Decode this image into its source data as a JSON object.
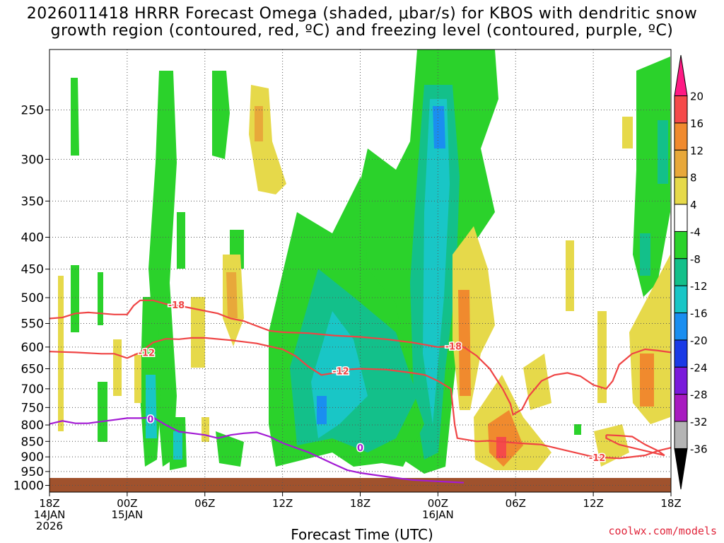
{
  "title": {
    "line1": "2026011418 HRRR Forecast Omega (shaded, μbar/s) for KBOS with dendritic snow",
    "line2": "growth region (contoured, red, ºC) and freezing level (contoured, purple, ºC)"
  },
  "credit": "coolwx.com/models",
  "chart_data": {
    "type": "heatmap",
    "xlabel": "Forecast Time (UTC)",
    "ylabel": "",
    "x_ticks": [
      {
        "hour": 0,
        "lines": [
          "18Z",
          "14JAN",
          "2026"
        ]
      },
      {
        "hour": 6,
        "lines": [
          "00Z",
          "15JAN"
        ]
      },
      {
        "hour": 12,
        "lines": [
          "06Z"
        ]
      },
      {
        "hour": 18,
        "lines": [
          "12Z"
        ]
      },
      {
        "hour": 24,
        "lines": [
          "18Z"
        ]
      },
      {
        "hour": 30,
        "lines": [
          "00Z",
          "16JAN"
        ]
      },
      {
        "hour": 36,
        "lines": [
          "06Z"
        ]
      },
      {
        "hour": 42,
        "lines": [
          "12Z"
        ]
      },
      {
        "hour": 48,
        "lines": [
          "18Z"
        ]
      }
    ],
    "xlim_hours": [
      0,
      48
    ],
    "y_ticks_hPa": [
      250,
      300,
      350,
      400,
      450,
      500,
      550,
      600,
      650,
      700,
      750,
      800,
      850,
      900,
      950,
      1000
    ],
    "ylim_hPa": [
      200,
      1025
    ],
    "y_scale": "log-pressure",
    "grid": true,
    "colorbar": {
      "labels": [
        20,
        16,
        12,
        8,
        4,
        -4,
        -8,
        -12,
        -16,
        -20,
        -24,
        -28,
        -32,
        -36
      ],
      "colors": [
        "#ff1a84",
        "#f54a4a",
        "#f08a2e",
        "#e8a83a",
        "#e6d94a",
        "#ffffff",
        "#2bd22b",
        "#13c08a",
        "#19c6c6",
        "#1a8ef0",
        "#1a3ae6",
        "#7a1adb",
        "#a81ac0",
        "#b4b4b4",
        "#000000"
      ]
    },
    "contour_labels": [
      "-18",
      "-12",
      "-18",
      "-12",
      "-12",
      "0",
      "0"
    ],
    "series": [
      {
        "kind": "temperature-contour",
        "color": "#ef4444",
        "points": [
          [
            0,
            540
          ],
          [
            1,
            538
          ],
          [
            2,
            530
          ],
          [
            3,
            528
          ],
          [
            4,
            530
          ],
          [
            5,
            532
          ],
          [
            6,
            532
          ],
          [
            6.5,
            515
          ],
          [
            7,
            505
          ],
          [
            8,
            505
          ],
          [
            9,
            512
          ],
          [
            10,
            515
          ],
          [
            11,
            520
          ],
          [
            12,
            525
          ],
          [
            13,
            530
          ],
          [
            14,
            540
          ],
          [
            15,
            545
          ],
          [
            16,
            555
          ],
          [
            17,
            565
          ],
          [
            18,
            568
          ],
          [
            20,
            570
          ],
          [
            22,
            575
          ],
          [
            24,
            578
          ],
          [
            26,
            583
          ],
          [
            28,
            590
          ],
          [
            29,
            595
          ],
          [
            30,
            600
          ],
          [
            31,
            598
          ],
          [
            32,
            600
          ],
          [
            33,
            620
          ],
          [
            34,
            650
          ],
          [
            35,
            700
          ],
          [
            35.6,
            740
          ],
          [
            35.8,
            770
          ],
          [
            36.5,
            755
          ],
          [
            37,
            720
          ],
          [
            38,
            680
          ],
          [
            39,
            665
          ],
          [
            40,
            660
          ],
          [
            41,
            668
          ],
          [
            42,
            690
          ],
          [
            43,
            700
          ],
          [
            43.5,
            680
          ],
          [
            44,
            640
          ],
          [
            45,
            615
          ],
          [
            46,
            605
          ],
          [
            47,
            608
          ],
          [
            48,
            612
          ]
        ]
      },
      {
        "kind": "temperature-contour",
        "color": "#ef4444",
        "points": [
          [
            0,
            610
          ],
          [
            2,
            612
          ],
          [
            4,
            615
          ],
          [
            5,
            615
          ],
          [
            6,
            625
          ],
          [
            7,
            612
          ],
          [
            8,
            590
          ],
          [
            9,
            582
          ],
          [
            10,
            583
          ],
          [
            11,
            580
          ],
          [
            12,
            580
          ],
          [
            14,
            585
          ],
          [
            16,
            592
          ],
          [
            18,
            605
          ],
          [
            19,
            620
          ],
          [
            20,
            645
          ],
          [
            21,
            665
          ],
          [
            22,
            660
          ],
          [
            23,
            652
          ],
          [
            24,
            650
          ],
          [
            26,
            652
          ],
          [
            28,
            660
          ],
          [
            29,
            665
          ],
          [
            30,
            680
          ],
          [
            31,
            700
          ],
          [
            31.3,
            800
          ],
          [
            31.5,
            840
          ],
          [
            33,
            850
          ],
          [
            34,
            848
          ],
          [
            36,
            855
          ],
          [
            38,
            860
          ],
          [
            40,
            880
          ],
          [
            42,
            900
          ],
          [
            44,
            905
          ],
          [
            46,
            895
          ],
          [
            47,
            880
          ],
          [
            48,
            870
          ]
        ]
      },
      {
        "kind": "temperature-contour",
        "color": "#ef4444",
        "points": [
          [
            43,
            830
          ],
          [
            44,
            832
          ],
          [
            45,
            835
          ],
          [
            46,
            860
          ],
          [
            47,
            880
          ],
          [
            47.5,
            895
          ],
          [
            46,
            880
          ],
          [
            44,
            860
          ],
          [
            43,
            840
          ],
          [
            43,
            830
          ]
        ]
      },
      {
        "kind": "freezing-level",
        "color": "#a31bd4",
        "points": [
          [
            0,
            797
          ],
          [
            1,
            788
          ],
          [
            2,
            795
          ],
          [
            3,
            795
          ],
          [
            4,
            790
          ],
          [
            5,
            785
          ],
          [
            6,
            780
          ],
          [
            7,
            780
          ],
          [
            8,
            778
          ],
          [
            9,
            800
          ],
          [
            10,
            820
          ],
          [
            11,
            825
          ],
          [
            12,
            830
          ],
          [
            13,
            840
          ],
          [
            14,
            830
          ],
          [
            15,
            825
          ],
          [
            16,
            822
          ],
          [
            17,
            835
          ],
          [
            18,
            855
          ],
          [
            19,
            870
          ],
          [
            20,
            885
          ],
          [
            21,
            905
          ],
          [
            22,
            925
          ],
          [
            23,
            945
          ],
          [
            24,
            955
          ],
          [
            26,
            968
          ],
          [
            28,
            980
          ],
          [
            30,
            985
          ],
          [
            32,
            990
          ]
        ]
      }
    ]
  }
}
